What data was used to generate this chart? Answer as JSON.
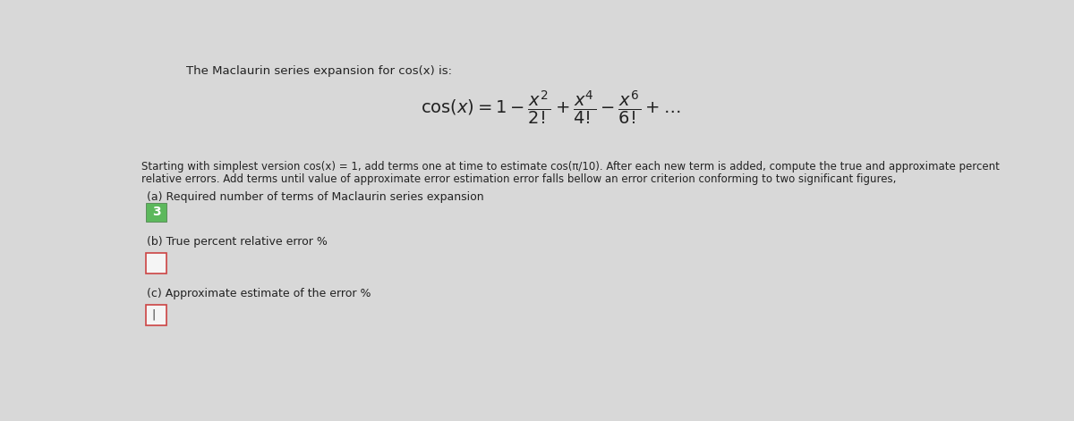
{
  "background_color": "#d8d8d8",
  "title_text": "The Maclaurin series expansion for cos(x) is:",
  "section_a_label": "(a) Required number of terms of Maclaurin series expansion",
  "section_a_value": "3",
  "section_a_box_color": "#5cb85c",
  "section_b_label": "(b) True percent relative error %",
  "section_b_value": "",
  "section_b_box_color": "#f5f5f5",
  "section_b_border": "#cc4444",
  "section_c_label": "(c) Approximate estimate of the error %",
  "section_c_value": "|",
  "section_c_box_color": "#f5f5f5",
  "section_c_border": "#cc4444",
  "text_color": "#222222",
  "inner_bg": "#d8d8d8",
  "desc_line1": "Starting with simplest version cos(x) = 1, add terms one at time to estimate cos(π/10). After each new term is added, compute the true and approximate percent",
  "desc_line2": "relative errors. Add terms until value of approximate error estimation error falls bellow an error criterion conforming to two significant figures,",
  "font_size_title": 9.5,
  "font_size_formula": 11,
  "font_size_body": 8.5,
  "font_size_section_label": 9.0,
  "font_size_value": 10
}
